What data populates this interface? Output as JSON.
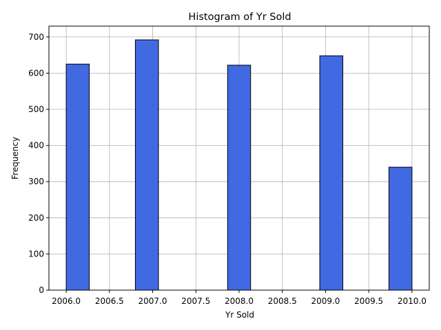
{
  "chart_data": {
    "type": "bar",
    "title": "Histogram of Yr Sold",
    "xlabel": "Yr Sold",
    "ylabel": "Frequency",
    "xlim": [
      2005.8,
      2010.2
    ],
    "ylim": [
      0,
      730
    ],
    "grid": true,
    "bin_width": 0.267,
    "bins": [
      {
        "start": 2006.0,
        "end": 2006.267,
        "count": 625
      },
      {
        "start": 2006.8,
        "end": 2007.067,
        "count": 692
      },
      {
        "start": 2007.867,
        "end": 2008.133,
        "count": 622
      },
      {
        "start": 2008.933,
        "end": 2009.2,
        "count": 648
      },
      {
        "start": 2009.733,
        "end": 2010.0,
        "count": 340
      }
    ],
    "x_ticks": [
      2006.0,
      2006.5,
      2007.0,
      2007.5,
      2008.0,
      2008.5,
      2009.0,
      2009.5,
      2010.0
    ],
    "x_tick_labels": [
      "2006.0",
      "2006.5",
      "2007.0",
      "2007.5",
      "2008.0",
      "2008.5",
      "2009.0",
      "2009.5",
      "2010.0"
    ],
    "y_ticks": [
      0,
      100,
      200,
      300,
      400,
      500,
      600,
      700
    ],
    "y_tick_labels": [
      "0",
      "100",
      "200",
      "300",
      "400",
      "500",
      "600",
      "700"
    ],
    "bar_color": "#4169e1",
    "edge_color": "#000000",
    "grid_color": "#b0b0b0"
  }
}
